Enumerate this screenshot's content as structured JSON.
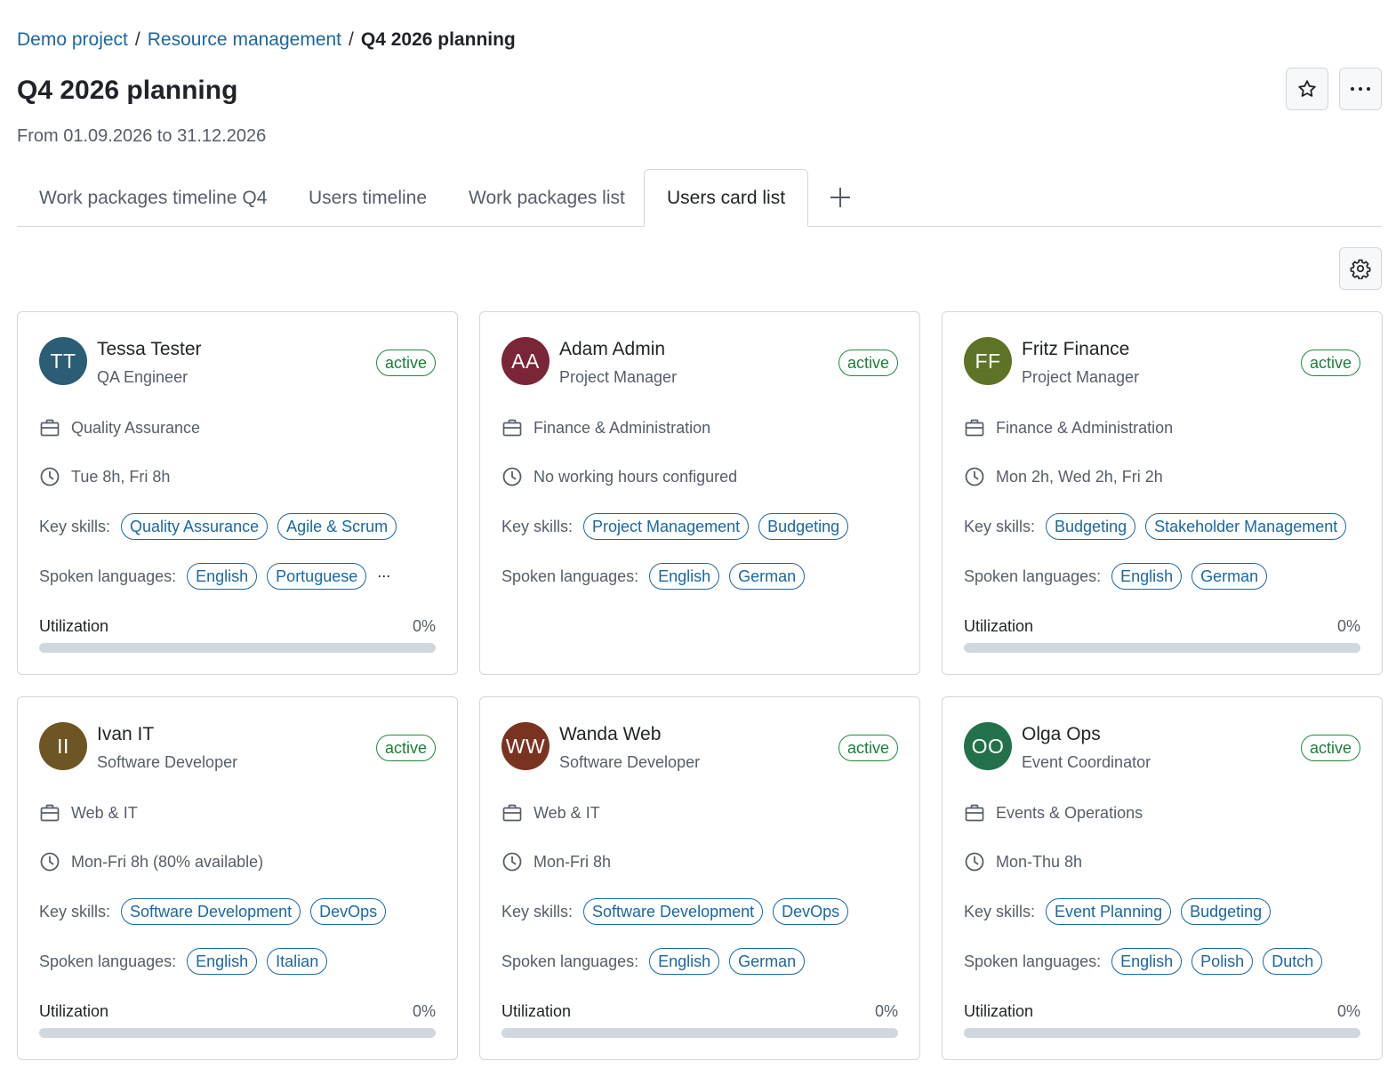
{
  "breadcrumb": {
    "items": [
      "Demo project",
      "Resource management"
    ],
    "separator": "/",
    "current": "Q4 2026 planning"
  },
  "page": {
    "title": "Q4 2026 planning",
    "subtitle": "From 01.09.2026 to 31.12.2026"
  },
  "header_actions": {
    "favorite_icon": "star-icon",
    "more_icon": "more-horizontal-icon"
  },
  "tabs": [
    {
      "label": "Work packages timeline Q4",
      "active": false
    },
    {
      "label": "Users timeline",
      "active": false
    },
    {
      "label": "Work packages list",
      "active": false
    },
    {
      "label": "Users card list",
      "active": true
    }
  ],
  "tab_add_icon": "plus-icon",
  "settings_icon": "gear-icon",
  "labels": {
    "key_skills": "Key skills:",
    "spoken_languages": "Spoken languages:",
    "utilization": "Utilization"
  },
  "colors": {
    "link": "#1a67a3",
    "status_active": "#1a7f37",
    "border": "#d0d7de"
  },
  "users": [
    {
      "initials": "TT",
      "avatar_color": "#2b5d75",
      "name": "Tessa Tester",
      "role": "QA Engineer",
      "status": "active",
      "department": "Quality Assurance",
      "hours": "Tue 8h, Fri 8h",
      "skills": [
        "Quality Assurance",
        "Agile & Scrum"
      ],
      "languages": [
        "English",
        "Portuguese"
      ],
      "languages_more": "...",
      "utilization": "0%",
      "utilization_fraction": 0
    },
    {
      "initials": "AA",
      "avatar_color": "#7a2538",
      "name": "Adam Admin",
      "role": "Project Manager",
      "status": "active",
      "department": "Finance & Administration",
      "hours": "No working hours configured",
      "skills": [
        "Project Management",
        "Budgeting"
      ],
      "languages": [
        "English",
        "German"
      ],
      "languages_more": "",
      "utilization": null,
      "utilization_fraction": null
    },
    {
      "initials": "FF",
      "avatar_color": "#5f7326",
      "name": "Fritz Finance",
      "role": "Project Manager",
      "status": "active",
      "department": "Finance & Administration",
      "hours": "Mon 2h, Wed 2h, Fri 2h",
      "skills": [
        "Budgeting",
        "Stakeholder Management"
      ],
      "languages": [
        "English",
        "German"
      ],
      "languages_more": "",
      "utilization": "0%",
      "utilization_fraction": 0
    },
    {
      "initials": "II",
      "avatar_color": "#6e5524",
      "name": "Ivan IT",
      "role": "Software Developer",
      "status": "active",
      "department": "Web & IT",
      "hours": "Mon-Fri 8h (80% available)",
      "skills": [
        "Software Development",
        "DevOps"
      ],
      "languages": [
        "English",
        "Italian"
      ],
      "languages_more": "",
      "utilization": "0%",
      "utilization_fraction": 0
    },
    {
      "initials": "WW",
      "avatar_color": "#7a3320",
      "name": "Wanda Web",
      "role": "Software Developer",
      "status": "active",
      "department": "Web & IT",
      "hours": "Mon-Fri 8h",
      "skills": [
        "Software Development",
        "DevOps"
      ],
      "languages": [
        "English",
        "German"
      ],
      "languages_more": "",
      "utilization": "0%",
      "utilization_fraction": 0
    },
    {
      "initials": "OO",
      "avatar_color": "#22714a",
      "name": "Olga Ops",
      "role": "Event Coordinator",
      "status": "active",
      "department": "Events & Operations",
      "hours": "Mon-Thu 8h",
      "skills": [
        "Event Planning",
        "Budgeting"
      ],
      "languages": [
        "English",
        "Polish",
        "Dutch"
      ],
      "languages_more": "",
      "utilization": "0%",
      "utilization_fraction": 0
    }
  ]
}
